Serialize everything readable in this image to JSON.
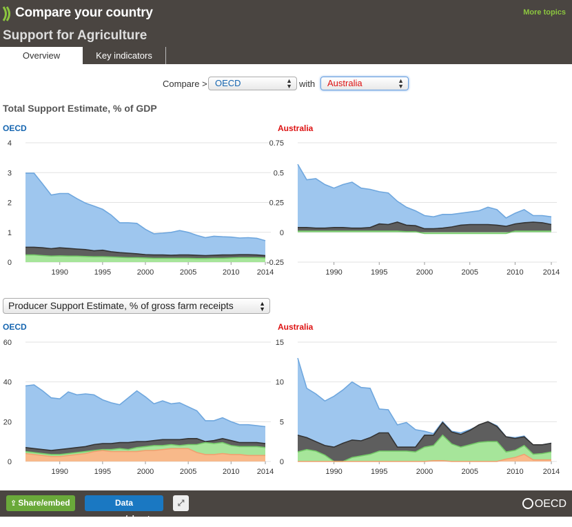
{
  "header": {
    "title": "Compare your country",
    "section": "Support for Agriculture",
    "more_topics": "More topics",
    "tabs": [
      {
        "label": "Overview"
      },
      {
        "label": "Key indicators"
      }
    ]
  },
  "compare": {
    "label": "Compare >",
    "country1": "OECD",
    "with_label": "with",
    "country2": "Australia"
  },
  "section1": {
    "title": "Total Support Estimate, % of GDP"
  },
  "section2": {
    "indicator": "Producer Support Estimate, % of gross farm receipts"
  },
  "colors": {
    "blue": "#9ec6ee",
    "blueLine": "#6fa7de",
    "dark": "#5e5e5e",
    "darkLine": "#333333",
    "green": "#a6e59a",
    "greenLine": "#74c968",
    "orange": "#f8b98a",
    "orangeLine": "#f0a070"
  },
  "chart_data": [
    {
      "type": "area",
      "title": "OECD",
      "x": [
        1986,
        1987,
        1988,
        1989,
        1990,
        1991,
        1992,
        1993,
        1994,
        1995,
        1996,
        1997,
        1998,
        1999,
        2000,
        2001,
        2002,
        2003,
        2004,
        2005,
        2006,
        2007,
        2008,
        2009,
        2010,
        2011,
        2012,
        2013,
        2014
      ],
      "xticks": [
        1990,
        1995,
        2000,
        2005,
        2010,
        2014
      ],
      "ylim": [
        0,
        4
      ],
      "yticks": [
        0,
        1,
        2,
        3,
        4
      ],
      "series": [
        {
          "values": [
            2.98,
            2.98,
            2.62,
            2.25,
            2.3,
            2.3,
            2.13,
            1.98,
            1.88,
            1.77,
            1.58,
            1.32,
            1.32,
            1.3,
            1.1,
            0.95,
            0.97,
            1.0,
            1.06,
            1.0,
            0.9,
            0.82,
            0.87,
            0.85,
            0.84,
            0.81,
            0.82,
            0.8,
            0.72
          ]
        },
        {
          "values": [
            0.5,
            0.5,
            0.48,
            0.45,
            0.48,
            0.46,
            0.44,
            0.42,
            0.38,
            0.4,
            0.35,
            0.32,
            0.3,
            0.28,
            0.25,
            0.24,
            0.24,
            0.23,
            0.24,
            0.24,
            0.23,
            0.22,
            0.23,
            0.24,
            0.24,
            0.25,
            0.25,
            0.24,
            0.22
          ]
        },
        {
          "values": [
            0.24,
            0.24,
            0.22,
            0.2,
            0.21,
            0.2,
            0.2,
            0.19,
            0.18,
            0.18,
            0.17,
            0.16,
            0.15,
            0.15,
            0.14,
            0.13,
            0.13,
            0.13,
            0.13,
            0.13,
            0.12,
            0.12,
            0.13,
            0.13,
            0.14,
            0.15,
            0.15,
            0.15,
            0.14
          ]
        }
      ]
    },
    {
      "type": "area",
      "title": "Australia",
      "x": [
        1986,
        1987,
        1988,
        1989,
        1990,
        1991,
        1992,
        1993,
        1994,
        1995,
        1996,
        1997,
        1998,
        1999,
        2000,
        2001,
        2002,
        2003,
        2004,
        2005,
        2006,
        2007,
        2008,
        2009,
        2010,
        2011,
        2012,
        2013,
        2014
      ],
      "xticks": [
        1990,
        1995,
        2000,
        2005,
        2010,
        2014
      ],
      "ylim": [
        -0.25,
        0.75
      ],
      "yticks": [
        -0.25,
        0,
        0.25,
        0.5,
        0.75
      ],
      "series": [
        {
          "values": [
            0.57,
            0.44,
            0.45,
            0.4,
            0.37,
            0.4,
            0.42,
            0.37,
            0.36,
            0.34,
            0.33,
            0.26,
            0.21,
            0.18,
            0.14,
            0.13,
            0.15,
            0.15,
            0.16,
            0.17,
            0.18,
            0.21,
            0.19,
            0.12,
            0.16,
            0.19,
            0.14,
            0.14,
            0.13
          ]
        },
        {
          "values": [
            0.04,
            0.04,
            0.035,
            0.035,
            0.04,
            0.04,
            0.035,
            0.035,
            0.04,
            0.07,
            0.065,
            0.085,
            0.06,
            0.055,
            0.03,
            0.03,
            0.035,
            0.045,
            0.06,
            0.065,
            0.065,
            0.065,
            0.06,
            0.05,
            0.07,
            0.08,
            0.085,
            0.08,
            0.065
          ]
        },
        {
          "values": [
            0.01,
            0.01,
            0.01,
            0.01,
            0.01,
            0.01,
            0.01,
            0.01,
            0.01,
            0.01,
            0.01,
            0.01,
            0.005,
            0.005,
            -0.01,
            -0.01,
            -0.01,
            -0.01,
            -0.01,
            -0.01,
            -0.01,
            -0.01,
            -0.01,
            -0.01,
            0.01,
            0.01,
            0.01,
            0.01,
            0.01
          ]
        }
      ]
    },
    {
      "type": "area",
      "title": "OECD",
      "x": [
        1986,
        1987,
        1988,
        1989,
        1990,
        1991,
        1992,
        1993,
        1994,
        1995,
        1996,
        1997,
        1998,
        1999,
        2000,
        2001,
        2002,
        2003,
        2004,
        2005,
        2006,
        2007,
        2008,
        2009,
        2010,
        2011,
        2012,
        2013,
        2014
      ],
      "xticks": [
        1990,
        1995,
        2000,
        2005,
        2010,
        2014
      ],
      "ylim": [
        0,
        60
      ],
      "yticks": [
        0,
        20,
        40,
        60
      ],
      "series": [
        {
          "values": [
            38,
            38.5,
            35.5,
            32,
            31.5,
            35,
            33.5,
            34,
            33.5,
            31,
            29.5,
            28.5,
            32,
            35.5,
            32.5,
            29,
            30.5,
            29,
            29.5,
            27.5,
            25.5,
            20.5,
            20.5,
            22,
            20,
            18.5,
            18.5,
            18,
            17.5
          ]
        },
        {
          "values": [
            7,
            6.5,
            6,
            5.5,
            6,
            6.5,
            7,
            7.5,
            8.5,
            9,
            9,
            9.5,
            9.5,
            10,
            10,
            10.5,
            11,
            11,
            11,
            11.5,
            11.5,
            10,
            10.5,
            11.5,
            10.5,
            9.5,
            9.5,
            9.5,
            9
          ]
        },
        {
          "values": [
            5,
            4.5,
            4,
            3.5,
            3.5,
            4,
            4.5,
            5,
            5.5,
            6,
            6,
            6.5,
            6,
            7,
            7.5,
            8,
            8,
            8.5,
            8,
            8.5,
            8.5,
            9.5,
            9,
            9.5,
            8,
            7.5,
            7.5,
            7.5,
            7
          ]
        },
        {
          "values": [
            4,
            3.5,
            3,
            2.5,
            2.5,
            3,
            3.5,
            4,
            5,
            5.5,
            5,
            5,
            5,
            5,
            5.5,
            5.5,
            6,
            6.5,
            6.5,
            6.5,
            4.5,
            3.5,
            3.5,
            4,
            3.5,
            3.5,
            3,
            3,
            3
          ]
        }
      ]
    },
    {
      "type": "area",
      "title": "Australia",
      "x": [
        1986,
        1987,
        1988,
        1989,
        1990,
        1991,
        1992,
        1993,
        1994,
        1995,
        1996,
        1997,
        1998,
        1999,
        2000,
        2001,
        2002,
        2003,
        2004,
        2005,
        2006,
        2007,
        2008,
        2009,
        2010,
        2011,
        2012,
        2013,
        2014
      ],
      "xticks": [
        1990,
        1995,
        2000,
        2005,
        2010,
        2014
      ],
      "ylim": [
        0,
        15
      ],
      "yticks": [
        0,
        5,
        10,
        15
      ],
      "series": [
        {
          "values": [
            13,
            9.2,
            8.5,
            7.6,
            8.2,
            9,
            10,
            9.3,
            9.2,
            6.6,
            6.5,
            4.6,
            4.9,
            4,
            3.8,
            3.5,
            5,
            3.8,
            3.6,
            4,
            4.5,
            5,
            4.5,
            3.1,
            3,
            3.2,
            2,
            2.1,
            2.3
          ]
        },
        {
          "values": [
            3.3,
            3,
            2.5,
            2,
            1.8,
            2.3,
            2.7,
            2.6,
            3,
            3.6,
            3.6,
            1.8,
            1.8,
            1.8,
            3.3,
            3.3,
            4.9,
            3.7,
            3.4,
            3.9,
            4.6,
            5,
            4.4,
            3.1,
            2.9,
            3.1,
            2.1,
            2.1,
            2.3
          ]
        },
        {
          "values": [
            1.2,
            1.5,
            1.3,
            0.8,
            0,
            0,
            0.5,
            0.7,
            0.9,
            1.3,
            1.3,
            1.3,
            1.3,
            1.2,
            1.8,
            2,
            3.3,
            2.2,
            1.8,
            2.1,
            2.4,
            2.5,
            2.5,
            1.2,
            1.4,
            2,
            0.9,
            1,
            1.2
          ]
        },
        {
          "values": [
            0,
            0,
            0,
            0,
            0,
            0,
            0,
            0,
            0,
            0,
            0,
            0,
            0,
            0,
            0,
            0.1,
            0.1,
            0,
            0,
            0,
            0,
            0,
            0,
            0.3,
            0.5,
            0.9,
            0.2,
            0.2,
            0.2
          ]
        }
      ]
    }
  ]
}
